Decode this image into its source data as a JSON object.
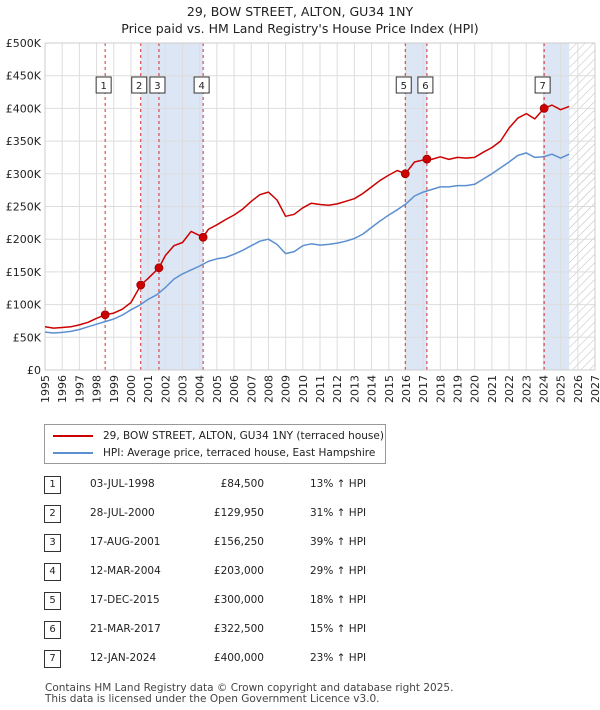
{
  "title": {
    "line1": "29, BOW STREET, ALTON, GU34 1NY",
    "line2": "Price paid vs. HM Land Registry's House Price Index (HPI)"
  },
  "colors": {
    "property": "#cc0000",
    "hpi": "#5b8fd0",
    "band": "#dce6f5",
    "grid": "#dddddd",
    "marker": "#cc0000"
  },
  "chart_data": {
    "type": "line",
    "title": "Price paid vs. HM Land Registry's House Price Index (HPI)",
    "xlim": [
      1995,
      2027
    ],
    "ylim": [
      0,
      500000
    ],
    "y_ticks": [
      {
        "value": 0,
        "label": "£0"
      },
      {
        "value": 50000,
        "label": "£50K"
      },
      {
        "value": 100000,
        "label": "£100K"
      },
      {
        "value": 150000,
        "label": "£150K"
      },
      {
        "value": 200000,
        "label": "£200K"
      },
      {
        "value": 250000,
        "label": "£250K"
      },
      {
        "value": 300000,
        "label": "£300K"
      },
      {
        "value": 350000,
        "label": "£350K"
      },
      {
        "value": 400000,
        "label": "£400K"
      },
      {
        "value": 450000,
        "label": "£450K"
      },
      {
        "value": 500000,
        "label": "£500K"
      }
    ],
    "x_ticks": [
      "1995",
      "1996",
      "1997",
      "1998",
      "1999",
      "2000",
      "2001",
      "2002",
      "2003",
      "2004",
      "2005",
      "2006",
      "2007",
      "2008",
      "2009",
      "2010",
      "2011",
      "2012",
      "2013",
      "2014",
      "2015",
      "2016",
      "2017",
      "2018",
      "2019",
      "2020",
      "2021",
      "2022",
      "2023",
      "2024",
      "2025",
      "2026",
      "2027"
    ],
    "forecast_from": 2025.5,
    "series": [
      {
        "name": "29, BOW STREET, ALTON, GU34 1NY (terraced house)",
        "key": "property",
        "points": [
          [
            1995.0,
            66000
          ],
          [
            1995.5,
            64000
          ],
          [
            1996.0,
            65000
          ],
          [
            1996.5,
            66000
          ],
          [
            1997.0,
            69000
          ],
          [
            1997.5,
            73000
          ],
          [
            1998.0,
            79000
          ],
          [
            1998.5,
            84500
          ],
          [
            1999.0,
            87000
          ],
          [
            1999.5,
            93000
          ],
          [
            2000.0,
            103000
          ],
          [
            2000.58,
            129950
          ],
          [
            2001.0,
            140000
          ],
          [
            2001.63,
            156250
          ],
          [
            2002.0,
            175000
          ],
          [
            2002.5,
            190000
          ],
          [
            2003.0,
            195000
          ],
          [
            2003.5,
            212000
          ],
          [
            2004.2,
            203000
          ],
          [
            2004.5,
            215000
          ],
          [
            2005.0,
            222000
          ],
          [
            2005.5,
            230000
          ],
          [
            2006.0,
            237000
          ],
          [
            2006.5,
            246000
          ],
          [
            2007.0,
            258000
          ],
          [
            2007.5,
            268000
          ],
          [
            2008.0,
            272000
          ],
          [
            2008.5,
            260000
          ],
          [
            2009.0,
            235000
          ],
          [
            2009.5,
            238000
          ],
          [
            2010.0,
            248000
          ],
          [
            2010.5,
            255000
          ],
          [
            2011.0,
            253000
          ],
          [
            2011.5,
            252000
          ],
          [
            2012.0,
            254000
          ],
          [
            2012.5,
            258000
          ],
          [
            2013.0,
            262000
          ],
          [
            2013.5,
            270000
          ],
          [
            2014.0,
            280000
          ],
          [
            2014.5,
            290000
          ],
          [
            2015.0,
            298000
          ],
          [
            2015.5,
            305000
          ],
          [
            2015.96,
            300000
          ],
          [
            2016.5,
            318000
          ],
          [
            2017.22,
            322500
          ],
          [
            2017.5,
            322000
          ],
          [
            2018.0,
            326000
          ],
          [
            2018.5,
            322000
          ],
          [
            2019.0,
            325000
          ],
          [
            2019.5,
            324000
          ],
          [
            2020.0,
            325000
          ],
          [
            2020.5,
            333000
          ],
          [
            2021.0,
            340000
          ],
          [
            2021.5,
            350000
          ],
          [
            2022.0,
            370000
          ],
          [
            2022.5,
            385000
          ],
          [
            2023.0,
            392000
          ],
          [
            2023.5,
            384000
          ],
          [
            2024.04,
            400000
          ],
          [
            2024.5,
            405000
          ],
          [
            2025.0,
            398000
          ],
          [
            2025.5,
            403000
          ]
        ]
      },
      {
        "name": "HPI: Average price, terraced house, East Hampshire",
        "key": "hpi",
        "points": [
          [
            1995.0,
            58000
          ],
          [
            1995.5,
            56500
          ],
          [
            1996.0,
            57500
          ],
          [
            1996.5,
            59000
          ],
          [
            1997.0,
            62000
          ],
          [
            1997.5,
            66000
          ],
          [
            1998.0,
            70000
          ],
          [
            1998.5,
            74000
          ],
          [
            1999.0,
            78000
          ],
          [
            1999.5,
            84000
          ],
          [
            2000.0,
            92000
          ],
          [
            2000.5,
            99000
          ],
          [
            2001.0,
            108000
          ],
          [
            2001.5,
            115000
          ],
          [
            2002.0,
            126000
          ],
          [
            2002.5,
            139000
          ],
          [
            2003.0,
            147000
          ],
          [
            2003.5,
            153000
          ],
          [
            2004.0,
            159000
          ],
          [
            2004.5,
            166000
          ],
          [
            2005.0,
            170000
          ],
          [
            2005.5,
            172000
          ],
          [
            2006.0,
            177000
          ],
          [
            2006.5,
            183000
          ],
          [
            2007.0,
            190000
          ],
          [
            2007.5,
            197000
          ],
          [
            2008.0,
            200000
          ],
          [
            2008.5,
            192000
          ],
          [
            2009.0,
            178000
          ],
          [
            2009.5,
            181000
          ],
          [
            2010.0,
            190000
          ],
          [
            2010.5,
            193000
          ],
          [
            2011.0,
            191000
          ],
          [
            2011.5,
            192000
          ],
          [
            2012.0,
            194000
          ],
          [
            2012.5,
            197000
          ],
          [
            2013.0,
            201000
          ],
          [
            2013.5,
            208000
          ],
          [
            2014.0,
            218000
          ],
          [
            2014.5,
            228000
          ],
          [
            2015.0,
            237000
          ],
          [
            2015.5,
            245000
          ],
          [
            2016.0,
            254000
          ],
          [
            2016.5,
            266000
          ],
          [
            2017.0,
            272000
          ],
          [
            2017.5,
            276000
          ],
          [
            2018.0,
            280000
          ],
          [
            2018.5,
            280000
          ],
          [
            2019.0,
            282000
          ],
          [
            2019.5,
            282000
          ],
          [
            2020.0,
            284000
          ],
          [
            2020.5,
            292000
          ],
          [
            2021.0,
            300000
          ],
          [
            2021.5,
            309000
          ],
          [
            2022.0,
            318000
          ],
          [
            2022.5,
            328000
          ],
          [
            2023.0,
            332000
          ],
          [
            2023.5,
            325000
          ],
          [
            2024.0,
            326000
          ],
          [
            2024.5,
            330000
          ],
          [
            2025.0,
            324000
          ],
          [
            2025.5,
            330000
          ]
        ]
      }
    ],
    "sales": [
      {
        "n": "1",
        "x": 1998.5,
        "date": "03-JUL-1998",
        "price": "£84,500",
        "value": 84500,
        "hpi": "13% ↑ HPI"
      },
      {
        "n": "2",
        "x": 2000.57,
        "date": "28-JUL-2000",
        "price": "£129,950",
        "value": 129950,
        "hpi": "31% ↑ HPI"
      },
      {
        "n": "3",
        "x": 2001.63,
        "date": "17-AUG-2001",
        "price": "£156,250",
        "value": 156250,
        "hpi": "39% ↑ HPI"
      },
      {
        "n": "4",
        "x": 2004.2,
        "date": "12-MAR-2004",
        "price": "£203,000",
        "value": 203000,
        "hpi": "29% ↑ HPI"
      },
      {
        "n": "5",
        "x": 2015.96,
        "date": "17-DEC-2015",
        "price": "£300,000",
        "value": 300000,
        "hpi": "18% ↑ HPI"
      },
      {
        "n": "6",
        "x": 2017.22,
        "date": "21-MAR-2017",
        "price": "£322,500",
        "value": 322500,
        "hpi": "15% ↑ HPI"
      },
      {
        "n": "7",
        "x": 2024.04,
        "date": "12-JAN-2024",
        "price": "£400,000",
        "value": 400000,
        "hpi": "23% ↑ HPI"
      }
    ],
    "shaded_bands": [
      [
        2000.57,
        2001.63
      ],
      [
        2001.63,
        2004.2
      ],
      [
        2015.96,
        2017.22
      ],
      [
        2024.04,
        2025.5
      ]
    ]
  },
  "legend": {
    "property_label": "29, BOW STREET, ALTON, GU34 1NY (terraced house)",
    "hpi_label": "HPI: Average price, terraced house, East Hampshire"
  },
  "footer": {
    "line1": "Contains HM Land Registry data © Crown copyright and database right 2025.",
    "line2": "This data is licensed under the Open Government Licence v3.0."
  }
}
